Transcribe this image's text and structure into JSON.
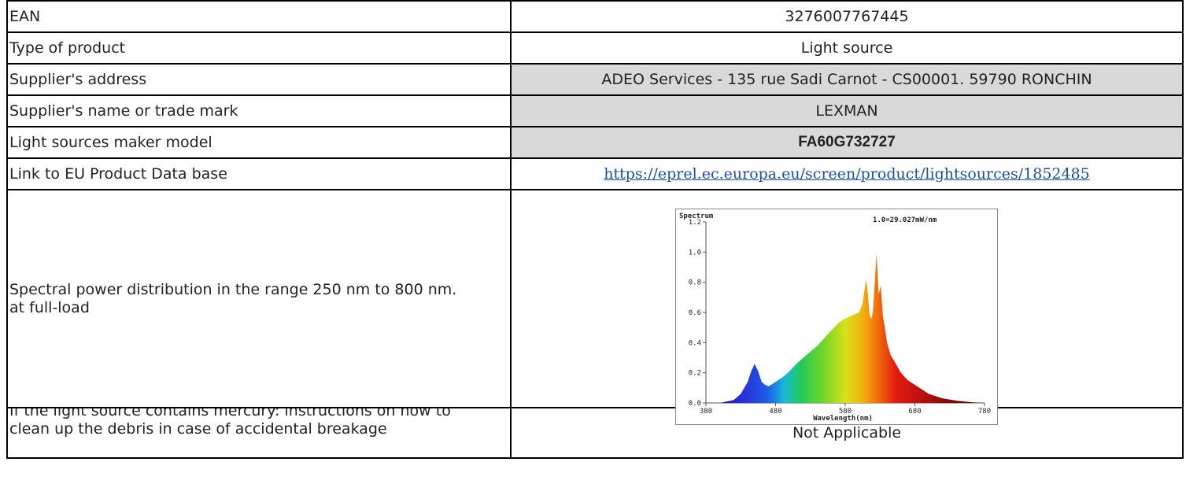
{
  "rows": [
    {
      "label": "EAN",
      "value": "3276007767445"
    },
    {
      "label": "Type of product",
      "value": "Light source"
    },
    {
      "label": "Supplier's address",
      "value": "ADEO Services - 135 rue Sadi Carnot - CS00001. 59790 RONCHIN"
    },
    {
      "label": "Supplier's name or trade mark",
      "value": "LEXMAN"
    },
    {
      "label": "Light sources maker model",
      "value": "FA60G732727"
    },
    {
      "label": "Link to EU Product Data base",
      "value": "https://eprel.ec.europa.eu/screen/product/lightsources/1852485"
    },
    {
      "label": "Spectral power distribution in the range 250 nm to 800 nm. at full-load",
      "value": ""
    },
    {
      "label": "If the light source contains mercury: instructions on how to clean up the debris in case of accidental breakage",
      "value": "Not Applicable"
    }
  ],
  "colors": {
    "grey_cell": "#d9d9d9",
    "link": "#1f4e9a"
  },
  "chart_data": {
    "type": "area",
    "title": "Spectrum",
    "annotation": "1.0=29.027mW/nm",
    "xlabel": "Wavelength(nm)",
    "ylabel": "",
    "xlim": [
      380,
      780
    ],
    "ylim": [
      0.0,
      1.2
    ],
    "xticks": [
      "380",
      "480",
      "580",
      "680",
      "780"
    ],
    "yticks": [
      "0.0",
      "0.2",
      "0.4",
      "0.6",
      "0.8",
      "1.0",
      "1.2"
    ],
    "x": [
      380,
      400,
      420,
      430,
      440,
      445,
      450,
      455,
      460,
      465,
      470,
      480,
      490,
      500,
      510,
      520,
      530,
      540,
      550,
      560,
      570,
      580,
      590,
      600,
      605,
      610,
      612,
      615,
      618,
      620,
      625,
      628,
      631,
      634,
      637,
      640,
      645,
      650,
      660,
      670,
      680,
      690,
      700,
      720,
      740,
      760,
      770,
      780
    ],
    "values": [
      0.0,
      0.0,
      0.02,
      0.06,
      0.14,
      0.21,
      0.26,
      0.21,
      0.14,
      0.12,
      0.11,
      0.14,
      0.17,
      0.21,
      0.26,
      0.3,
      0.34,
      0.38,
      0.43,
      0.48,
      0.53,
      0.56,
      0.58,
      0.6,
      0.66,
      0.82,
      0.75,
      0.58,
      0.56,
      0.62,
      0.99,
      0.72,
      0.78,
      0.58,
      0.5,
      0.4,
      0.32,
      0.28,
      0.2,
      0.15,
      0.12,
      0.09,
      0.06,
      0.03,
      0.015,
      0.005,
      0.002,
      0.0
    ]
  }
}
